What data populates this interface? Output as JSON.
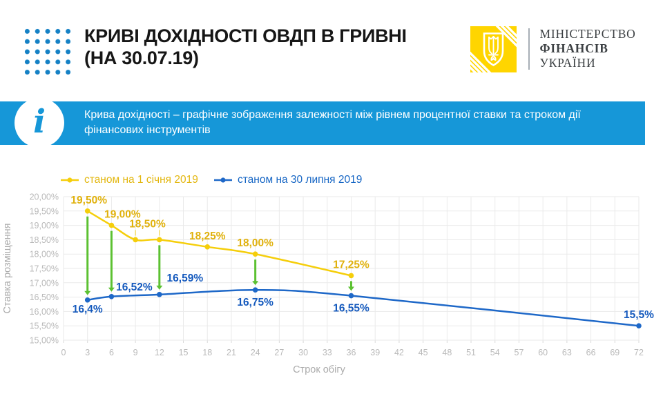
{
  "header": {
    "title_line1": "КРИВІ ДОХІДНОСТІ ОВДП В ГРИВНІ",
    "title_line2": "(НА 30.07.19)",
    "ministry": {
      "line1": "МІНІСТЕРСТВО",
      "line2": "ФІНАНСІВ",
      "line3": "УКРАЇНИ"
    }
  },
  "info_bar": {
    "icon": "info-icon",
    "text": "Крива дохідності – графічне зображення залежності між рівнем процентної ставки та строком дії фінансових інструментів"
  },
  "colors": {
    "info_bar_blue": "#1697D8",
    "dot_grid_blue": "#1581C5",
    "logo_yellow": "#FFD500",
    "series_yellow": "#F5CE0B",
    "series_blue": "#1E68C8",
    "arrow_green": "#5CC132"
  },
  "chart_data": {
    "type": "line",
    "title": "",
    "xlabel": "Строк обігу",
    "ylabel": "Ставка розміщення",
    "xlim": [
      0,
      72
    ],
    "ylim": [
      15,
      20
    ],
    "grid": true,
    "legend_position": "top",
    "xticks": [
      0,
      3,
      6,
      9,
      12,
      15,
      18,
      21,
      24,
      27,
      30,
      33,
      36,
      39,
      42,
      45,
      48,
      51,
      54,
      57,
      60,
      63,
      66,
      69,
      72
    ],
    "yticks": [
      {
        "v": 15.0,
        "label": "15,00%"
      },
      {
        "v": 15.5,
        "label": "15,50%"
      },
      {
        "v": 16.0,
        "label": "16,00%"
      },
      {
        "v": 16.5,
        "label": "16,50%"
      },
      {
        "v": 17.0,
        "label": "17,00%"
      },
      {
        "v": 17.5,
        "label": "17,50%"
      },
      {
        "v": 18.0,
        "label": "18,00%"
      },
      {
        "v": 18.5,
        "label": "18,50%"
      },
      {
        "v": 19.0,
        "label": "19,00%"
      },
      {
        "v": 19.5,
        "label": "19,50%"
      },
      {
        "v": 20.0,
        "label": "20,00%"
      }
    ],
    "series": [
      {
        "name": "станом на 1 січня 2019",
        "color": "#F5CE0B",
        "label_color": "#E0B10C",
        "points": [
          {
            "x": 3,
            "y": 19.5,
            "label": "19,50%",
            "label_pos": "above",
            "dx": 2
          },
          {
            "x": 6,
            "y": 19.0,
            "label": "19,00%",
            "label_pos": "above",
            "dx": 16
          },
          {
            "x": 9,
            "y": 18.5,
            "label": "18,50%",
            "label_pos": "above",
            "dy": -7,
            "leader": [
              9,
              12
            ]
          },
          {
            "x": 12,
            "y": 18.5
          },
          {
            "x": 18,
            "y": 18.25,
            "label": "18,25%",
            "label_pos": "above"
          },
          {
            "x": 24,
            "y": 18.0,
            "label": "18,00%",
            "label_pos": "above"
          },
          {
            "x": 36,
            "y": 17.25,
            "label": "17,25%",
            "label_pos": "above"
          }
        ]
      },
      {
        "name": "станом на 30 липня 2019",
        "color": "#1E68C8",
        "label_color": "#1459BD",
        "points": [
          {
            "x": 3,
            "y": 16.4,
            "label": "16,4%",
            "label_pos": "below",
            "dy": -5
          },
          {
            "x": 6,
            "y": 16.52,
            "label": "16,52%",
            "label_pos": "above",
            "dx": 33,
            "dy": 2
          },
          {
            "x": 12,
            "y": 16.59,
            "label": "16,59%",
            "label_pos": "above",
            "dx": 37,
            "dy": -8
          },
          {
            "x": 24,
            "y": 16.75,
            "label": "16,75%",
            "label_pos": "below"
          },
          {
            "x": 36,
            "y": 16.55,
            "label": "16,55%",
            "label_pos": "below"
          },
          {
            "x": 72,
            "y": 15.5,
            "label": "15,5%",
            "label_pos": "above"
          }
        ]
      }
    ],
    "arrows": {
      "color": "#5CC132",
      "at_x": [
        3,
        6,
        12,
        24,
        36
      ],
      "from_series": 0,
      "to_series": 1
    }
  }
}
